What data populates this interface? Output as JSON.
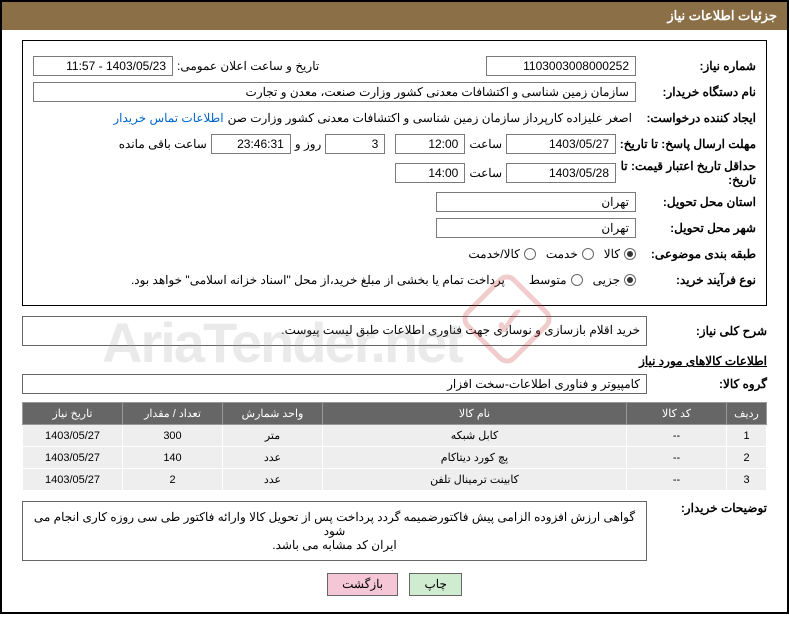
{
  "header": {
    "title": "جزئیات اطلاعات نیاز"
  },
  "fields": {
    "need_no_label": "شماره نیاز:",
    "need_no": "1103003008000252",
    "announce_label": "تاریخ و ساعت اعلان عمومی:",
    "announce_val": "1403/05/23 - 11:57",
    "buyer_org_label": "نام دستگاه خریدار:",
    "buyer_org": "سازمان زمین شناسی و اکتشافات معدنی کشور وزارت صنعت، معدن و تجارت",
    "requester_label": "ایجاد کننده درخواست:",
    "requester": "اصغر علیزاده کارپرداز سازمان زمین شناسی و اکتشافات معدنی کشور وزارت صن",
    "contact_link": "اطلاعات تماس خریدار",
    "deadline_send_label": "مهلت ارسال پاسخ: تا تاریخ:",
    "deadline_send_date": "1403/05/27",
    "time_label": "ساعت",
    "deadline_send_time": "12:00",
    "days_remain": "3",
    "days_label": "روز و",
    "time_remain": "23:46:31",
    "remain_label": "ساعت باقی مانده",
    "min_validity_label": "حداقل تاریخ اعتبار قیمت: تا تاریخ:",
    "min_validity_date": "1403/05/28",
    "min_validity_time": "14:00",
    "province_label": "استان محل تحویل:",
    "province": "تهران",
    "city_label": "شهر محل تحویل:",
    "city": "تهران",
    "category_label": "طبقه بندی موضوعی:",
    "cat_kala": "کالا",
    "cat_khadamat": "خدمت",
    "cat_both": "کالا/خدمت",
    "process_label": "نوع فرآیند خرید:",
    "proc_partial": "جزیی",
    "proc_medium": "متوسط",
    "proc_note": "پرداخت تمام یا بخشی از مبلغ خرید،از محل \"اسناد خزانه اسلامی\" خواهد بود.",
    "general_desc_label": "شرح کلی نیاز:",
    "general_desc": "خرید اقلام بازسازی و نوسازی جهت فناوری اطلاعات طبق لیست پیوست.",
    "goods_info_label": "اطلاعات کالاهای مورد نیاز",
    "goods_group_label": "گروه کالا:",
    "goods_group": "کامپیوتر و فناوری اطلاعات-سخت افزار",
    "buyer_notes_label": "توضیحات خریدار:",
    "buyer_notes_1": "گواهی ارزش افزوده الزامی پیش فاکتورضمیمه گردد پرداخت پس از تحویل کالا وارائه فاکتور طی سی روزه کاری انجام می شود",
    "buyer_notes_2": "ایران کد مشابه می باشد."
  },
  "table": {
    "headers": {
      "row": "ردیف",
      "code": "کد کالا",
      "name": "نام کالا",
      "unit": "واحد شمارش",
      "qty": "تعداد / مقدار",
      "date": "تاریخ نیاز"
    },
    "rows": [
      {
        "n": "1",
        "code": "--",
        "name": "کابل شبکه",
        "unit": "متر",
        "qty": "300",
        "date": "1403/05/27"
      },
      {
        "n": "2",
        "code": "--",
        "name": "پچ کورد دیتاکام",
        "unit": "عدد",
        "qty": "140",
        "date": "1403/05/27"
      },
      {
        "n": "3",
        "code": "--",
        "name": "کابینت ترمینال تلفن",
        "unit": "عدد",
        "qty": "2",
        "date": "1403/05/27"
      }
    ]
  },
  "buttons": {
    "print": "چاپ",
    "back": "بازگشت"
  },
  "watermark": "AriaTender.net"
}
